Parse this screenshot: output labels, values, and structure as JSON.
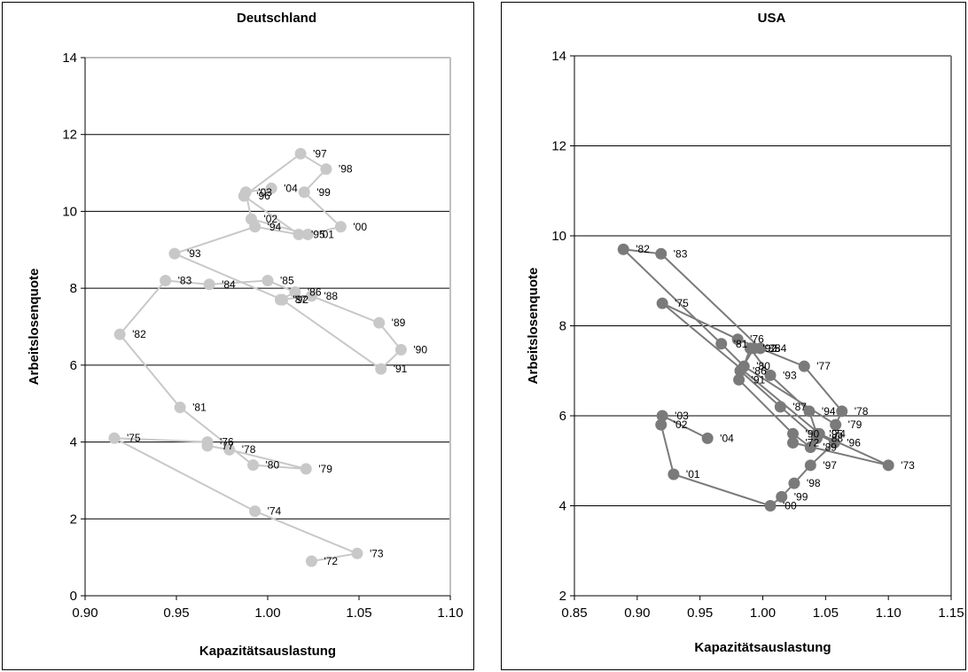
{
  "chart_data": [
    {
      "type": "scatter",
      "title": "Deutschland",
      "xlabel": "Kapazitätsauslastung",
      "ylabel": "Arbeitslosenquote",
      "xlim": [
        0.9,
        1.1
      ],
      "ylim": [
        0,
        14
      ],
      "xticks": [
        "0.90",
        "0.95",
        "1.00",
        "1.05",
        "1.10"
      ],
      "yticks": [
        "0",
        "2",
        "4",
        "6",
        "8",
        "10",
        "12",
        "14"
      ],
      "grid": "horizontal",
      "colors": {
        "series": "#c8c8c8",
        "grid": "#000000",
        "axis": "#000000",
        "frame": "#c0c0c0"
      },
      "points": [
        {
          "label": "'72",
          "x": 1.024,
          "y": 0.9
        },
        {
          "label": "'73",
          "x": 1.049,
          "y": 1.1
        },
        {
          "label": "'74",
          "x": 0.993,
          "y": 2.2
        },
        {
          "label": "'75",
          "x": 0.916,
          "y": 4.1
        },
        {
          "label": "'76",
          "x": 0.967,
          "y": 4.0
        },
        {
          "label": "'77",
          "x": 0.967,
          "y": 3.9
        },
        {
          "label": "'78",
          "x": 0.979,
          "y": 3.8
        },
        {
          "label": "'79",
          "x": 1.021,
          "y": 3.3
        },
        {
          "label": "'80",
          "x": 0.992,
          "y": 3.4
        },
        {
          "label": "'81",
          "x": 0.952,
          "y": 4.9
        },
        {
          "label": "'82",
          "x": 0.919,
          "y": 6.8
        },
        {
          "label": "'83",
          "x": 0.944,
          "y": 8.2
        },
        {
          "label": "'84",
          "x": 0.968,
          "y": 8.1
        },
        {
          "label": "'85",
          "x": 1.0,
          "y": 8.2
        },
        {
          "label": "'86",
          "x": 1.015,
          "y": 7.9
        },
        {
          "label": "'87",
          "x": 1.007,
          "y": 7.7
        },
        {
          "label": "'88",
          "x": 1.024,
          "y": 7.8
        },
        {
          "label": "'89",
          "x": 1.061,
          "y": 7.1
        },
        {
          "label": "'90",
          "x": 1.073,
          "y": 6.4
        },
        {
          "label": "'91",
          "x": 1.062,
          "y": 5.9
        },
        {
          "label": "'92",
          "x": 1.008,
          "y": 7.7
        },
        {
          "label": "'93",
          "x": 0.949,
          "y": 8.9
        },
        {
          "label": "'94",
          "x": 0.993,
          "y": 9.6
        },
        {
          "label": "'95",
          "x": 1.017,
          "y": 9.4
        },
        {
          "label": "'96",
          "x": 0.987,
          "y": 10.4
        },
        {
          "label": "'97",
          "x": 1.018,
          "y": 11.5
        },
        {
          "label": "'98",
          "x": 1.032,
          "y": 11.1
        },
        {
          "label": "'99",
          "x": 1.02,
          "y": 10.5
        },
        {
          "label": "'00",
          "x": 1.04,
          "y": 9.6
        },
        {
          "label": "'01",
          "x": 1.022,
          "y": 9.4
        },
        {
          "label": "'02",
          "x": 0.991,
          "y": 9.8
        },
        {
          "label": "'03",
          "x": 0.988,
          "y": 10.5
        },
        {
          "label": "'04",
          "x": 1.002,
          "y": 10.6
        }
      ]
    },
    {
      "type": "scatter",
      "title": "USA",
      "xlabel": "Kapazitätsauslastung",
      "ylabel": "Arbeitslosenquote",
      "xlim": [
        0.85,
        1.15
      ],
      "ylim": [
        2,
        14
      ],
      "xticks": [
        "0.85",
        "0.90",
        "0.95",
        "1.00",
        "1.05",
        "1.10",
        "1.15"
      ],
      "yticks": [
        "2",
        "4",
        "6",
        "8",
        "10",
        "12",
        "14"
      ],
      "grid": "horizontal",
      "colors": {
        "series": "#7a7a7a",
        "grid": "#000000",
        "axis": "#000000",
        "frame": "#808080"
      },
      "points": [
        {
          "label": "'72",
          "x": 1.024,
          "y": 5.4
        },
        {
          "label": "'73",
          "x": 1.1,
          "y": 4.9
        },
        {
          "label": "'74",
          "x": 1.045,
          "y": 5.6
        },
        {
          "label": "'75",
          "x": 0.92,
          "y": 8.5
        },
        {
          "label": "'76",
          "x": 0.98,
          "y": 7.7
        },
        {
          "label": "'77",
          "x": 1.033,
          "y": 7.1
        },
        {
          "label": "'78",
          "x": 1.063,
          "y": 6.1
        },
        {
          "label": "'79",
          "x": 1.058,
          "y": 5.8
        },
        {
          "label": "'80",
          "x": 0.985,
          "y": 7.1
        },
        {
          "label": "'81",
          "x": 0.967,
          "y": 7.6
        },
        {
          "label": "'82",
          "x": 0.889,
          "y": 9.7
        },
        {
          "label": "'83",
          "x": 0.919,
          "y": 9.6
        },
        {
          "label": "'84",
          "x": 0.998,
          "y": 7.5
        },
        {
          "label": "'85",
          "x": 0.993,
          "y": 7.5
        },
        {
          "label": "'86",
          "x": 0.982,
          "y": 7.0
        },
        {
          "label": "'87",
          "x": 1.014,
          "y": 6.2
        },
        {
          "label": "'88",
          "x": 1.043,
          "y": 5.5
        },
        {
          "label": "'89",
          "x": 1.038,
          "y": 5.3
        },
        {
          "label": "'90",
          "x": 1.024,
          "y": 5.6
        },
        {
          "label": "'91",
          "x": 0.981,
          "y": 6.8
        },
        {
          "label": "'92",
          "x": 0.99,
          "y": 7.5
        },
        {
          "label": "'93",
          "x": 1.006,
          "y": 6.9
        },
        {
          "label": "'94",
          "x": 1.037,
          "y": 6.1
        },
        {
          "label": "'95",
          "x": 1.043,
          "y": 5.6
        },
        {
          "label": "'96",
          "x": 1.057,
          "y": 5.4
        },
        {
          "label": "'97",
          "x": 1.038,
          "y": 4.9
        },
        {
          "label": "'98",
          "x": 1.025,
          "y": 4.5
        },
        {
          "label": "'99",
          "x": 1.015,
          "y": 4.2
        },
        {
          "label": "'00",
          "x": 1.006,
          "y": 4.0
        },
        {
          "label": "'01",
          "x": 0.929,
          "y": 4.7
        },
        {
          "label": "'02",
          "x": 0.919,
          "y": 5.8
        },
        {
          "label": "'03",
          "x": 0.92,
          "y": 6.0
        },
        {
          "label": "'04",
          "x": 0.956,
          "y": 5.5
        }
      ]
    }
  ]
}
